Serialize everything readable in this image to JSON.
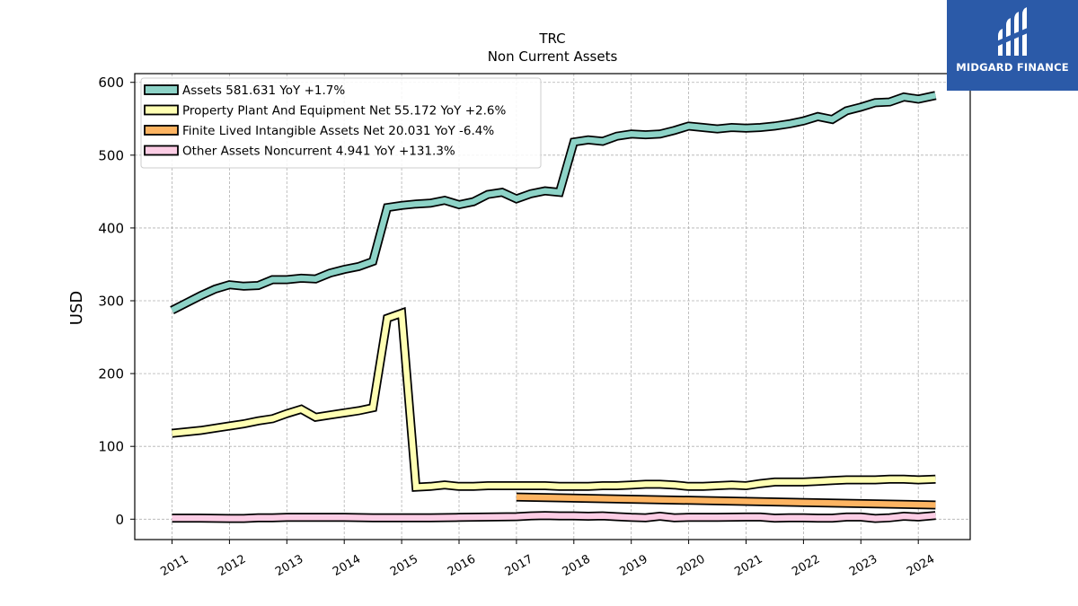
{
  "brand": {
    "name": "MIDGARD FINANCE",
    "icon": "midgard-logo-icon",
    "color": "#2b5aa8"
  },
  "chart_data": {
    "type": "line",
    "title": "TRC",
    "subtitle": "Non Current  Assets",
    "ylabel": "USD",
    "xlabel": "",
    "xlim": [
      2010.6,
      2024.9
    ],
    "ylim": [
      -28,
      612
    ],
    "yticks": [
      0,
      100,
      200,
      300,
      400,
      500,
      600
    ],
    "xticks": [
      "2011",
      "2012",
      "2013",
      "2014",
      "2015",
      "2016",
      "2017",
      "2018",
      "2019",
      "2020",
      "2021",
      "2022",
      "2023",
      "2024"
    ],
    "grid": true,
    "legend_position": "top-left",
    "series": [
      {
        "name": "Assets  581.631 YoY +1.7%",
        "color": "#8dd3c7",
        "x": [
          2011.0,
          2011.25,
          2011.5,
          2011.75,
          2012.0,
          2012.25,
          2012.5,
          2012.75,
          2013.0,
          2013.25,
          2013.5,
          2013.75,
          2014.0,
          2014.25,
          2014.5,
          2014.75,
          2015.0,
          2015.25,
          2015.5,
          2015.75,
          2016.0,
          2016.25,
          2016.5,
          2016.75,
          2017.0,
          2017.25,
          2017.5,
          2017.75,
          2018.0,
          2018.25,
          2018.5,
          2018.75,
          2019.0,
          2019.25,
          2019.5,
          2019.75,
          2020.0,
          2020.25,
          2020.5,
          2020.75,
          2021.0,
          2021.25,
          2021.5,
          2021.75,
          2022.0,
          2022.25,
          2022.5,
          2022.75,
          2023.0,
          2023.25,
          2023.5,
          2023.75,
          2024.0,
          2024.3
        ],
        "values": [
          287,
          297,
          307,
          316,
          322,
          320,
          321,
          329,
          329,
          331,
          330,
          338,
          343,
          347,
          354,
          428,
          431,
          433,
          434,
          438,
          432,
          436,
          446,
          449,
          440,
          447,
          451,
          449,
          518,
          521,
          519,
          526,
          529,
          528,
          529,
          534,
          540,
          538,
          536,
          538,
          537,
          538,
          540,
          543,
          547,
          553,
          549,
          561,
          566,
          572,
          573,
          580,
          577,
          582
        ]
      },
      {
        "name": "Property Plant And Equipment Net  55.172 YoY +2.6%",
        "color": "#ffffb3",
        "x": [
          2011.0,
          2011.25,
          2011.5,
          2011.75,
          2012.0,
          2012.25,
          2012.5,
          2012.75,
          2013.0,
          2013.25,
          2013.5,
          2013.75,
          2014.0,
          2014.25,
          2014.5,
          2014.75,
          2015.0,
          2015.25,
          2015.5,
          2015.75,
          2016.0,
          2016.25,
          2016.5,
          2016.75,
          2017.0,
          2017.25,
          2017.5,
          2017.75,
          2018.0,
          2018.25,
          2018.5,
          2018.75,
          2019.0,
          2019.25,
          2019.5,
          2019.75,
          2020.0,
          2020.25,
          2020.5,
          2020.75,
          2021.0,
          2021.25,
          2021.5,
          2021.75,
          2022.0,
          2022.25,
          2022.5,
          2022.75,
          2023.0,
          2023.25,
          2023.5,
          2023.75,
          2024.0,
          2024.3
        ],
        "values": [
          118,
          120,
          122,
          125,
          128,
          131,
          135,
          138,
          145,
          151,
          140,
          143,
          146,
          149,
          153,
          276,
          283,
          44,
          45,
          47,
          45,
          45,
          46,
          46,
          46,
          46,
          46,
          45,
          45,
          45,
          46,
          46,
          47,
          48,
          48,
          47,
          45,
          45,
          46,
          47,
          46,
          49,
          51,
          51,
          51,
          52,
          53,
          54,
          54,
          54,
          55,
          55,
          54,
          55
        ]
      },
      {
        "name": "Finite Lived Intangible Assets Net  20.031 YoY -6.4%",
        "color": "#fdb462",
        "x": [
          2017.0,
          2024.3
        ],
        "values": [
          30.5,
          19.5
        ]
      },
      {
        "name": "Other Assets Noncurrent  4.941 YoY +131.3%",
        "color": "#fccde5",
        "x": [
          2011.0,
          2011.5,
          2012.0,
          2012.25,
          2012.5,
          2012.75,
          2013.0,
          2013.5,
          2014.0,
          2014.5,
          2015.0,
          2015.5,
          2016.0,
          2016.5,
          2017.0,
          2017.25,
          2017.5,
          2017.75,
          2018.0,
          2018.25,
          2018.5,
          2018.75,
          2019.0,
          2019.25,
          2019.5,
          2019.75,
          2020.0,
          2020.5,
          2021.0,
          2021.25,
          2021.5,
          2021.75,
          2022.0,
          2022.25,
          2022.5,
          2022.75,
          2023.0,
          2023.25,
          2023.5,
          2023.75,
          2024.0,
          2024.3
        ],
        "values": [
          1.5,
          1.5,
          1.0,
          1.0,
          2.0,
          2.0,
          2.5,
          2.5,
          2.5,
          2.0,
          2.0,
          2.0,
          2.5,
          3.0,
          3.5,
          4.5,
          5.0,
          4.5,
          4.5,
          4.0,
          4.5,
          3.5,
          2.5,
          2.0,
          4.0,
          2.0,
          2.5,
          2.5,
          3.0,
          3.0,
          1.5,
          2.0,
          2.0,
          1.5,
          1.5,
          3.0,
          3.0,
          1.0,
          2.0,
          4.0,
          3.0,
          5.0
        ]
      }
    ]
  }
}
